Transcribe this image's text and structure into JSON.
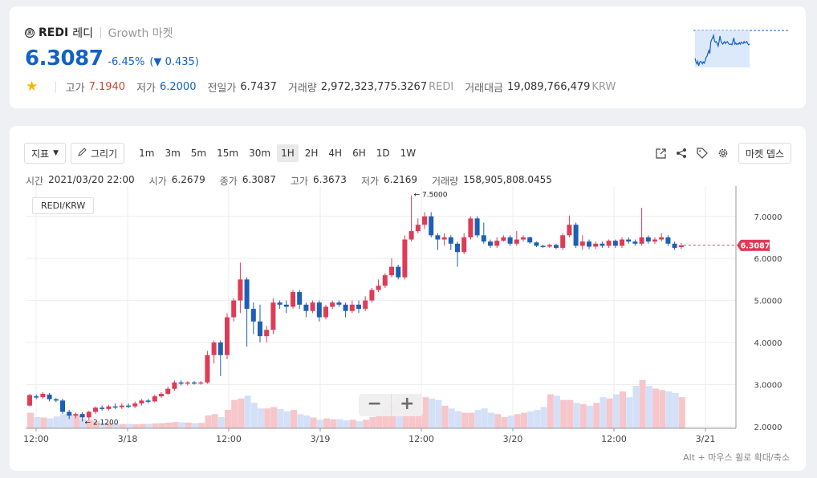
{
  "ticker": {
    "logo": "Ⓡ",
    "symbol": "REDI",
    "name": "레디",
    "separator": "|",
    "market": "Growth 마켓",
    "price": "6.3087",
    "change_pct": "-6.45%",
    "change_prefix": "(",
    "change_arrow": "▼",
    "change_abs": "0.435)",
    "stat_divider": "|",
    "high_label": "고가",
    "high": "7.1940",
    "low_label": "저가",
    "low": "6.2000",
    "prev_label": "전일가",
    "prev": "6.7437",
    "volume_label": "거래량",
    "volume": "2,972,323,775.3267",
    "volume_unit": "REDI",
    "amount_label": "거래대금",
    "amount": "19,089,766,479",
    "amount_unit": "KRW",
    "colors": {
      "up": "#c84a31",
      "down": "#1261c4",
      "star": "#f5b900"
    }
  },
  "toolbar": {
    "indicator_label": "지표",
    "draw_label": "그리기",
    "intervals": [
      "1m",
      "3m",
      "5m",
      "15m",
      "30m",
      "1H",
      "2H",
      "4H",
      "6H",
      "1D",
      "1W"
    ],
    "active_interval": "1H",
    "market_depth_label": "마켓 뎁스",
    "icons": [
      "popout-icon",
      "share-icon",
      "tag-icon",
      "settings-icon"
    ]
  },
  "ohlc": {
    "time_label": "시간",
    "time": "2021/03/20 22:00",
    "open_label": "시가",
    "open": "6.2679",
    "close_label": "종가",
    "close": "6.3087",
    "high_label": "고가",
    "high": "6.3673",
    "low_label": "저가",
    "low": "6.2169",
    "volume_label": "거래량",
    "volume": "158,905,808.0455"
  },
  "pair_label": "REDI/KRW",
  "zoom": {
    "minus": "−",
    "plus": "+"
  },
  "hint": "Alt + 마우스 휠로 확대/축소",
  "chart_data": {
    "type": "candlestick",
    "interval": "1H",
    "xlabel": "",
    "ylabel": "",
    "x_ticks": [
      "12:00",
      "3/18",
      "12:00",
      "3/19",
      "12:00",
      "3/20",
      "12:00",
      "3/21"
    ],
    "y_ticks": [
      "7.0000",
      "6.0000",
      "5.0000",
      "4.0000",
      "3.0000",
      "2.0000"
    ],
    "ylim": [
      1.96,
      7.72
    ],
    "current_price_label": "6.3087",
    "max_marker": "← 7.5000",
    "min_marker": "← 2.1200",
    "colors": {
      "up": "#dd3c57",
      "down": "#1d5fb4",
      "vol_up": "#f6c6cb",
      "vol_down": "#d4e0f7"
    },
    "candles": [
      [
        2.5,
        2.75,
        2.48,
        2.78
      ],
      [
        2.72,
        2.7,
        2.65,
        2.76
      ],
      [
        2.7,
        2.78,
        2.66,
        2.82
      ],
      [
        2.76,
        2.65,
        2.6,
        2.8
      ],
      [
        2.65,
        2.62,
        2.58,
        2.68
      ],
      [
        2.62,
        2.35,
        2.3,
        2.66
      ],
      [
        2.35,
        2.26,
        2.18,
        2.4
      ],
      [
        2.26,
        2.3,
        2.2,
        2.33
      ],
      [
        2.3,
        2.22,
        2.12,
        2.34
      ],
      [
        2.22,
        2.35,
        2.15,
        2.38
      ],
      [
        2.35,
        2.45,
        2.3,
        2.48
      ],
      [
        2.45,
        2.42,
        2.38,
        2.5
      ],
      [
        2.42,
        2.48,
        2.38,
        2.52
      ],
      [
        2.48,
        2.46,
        2.42,
        2.55
      ],
      [
        2.46,
        2.5,
        2.42,
        2.56
      ],
      [
        2.5,
        2.48,
        2.44,
        2.55
      ],
      [
        2.48,
        2.55,
        2.44,
        2.6
      ],
      [
        2.55,
        2.62,
        2.5,
        2.66
      ],
      [
        2.62,
        2.6,
        2.55,
        2.66
      ],
      [
        2.6,
        2.72,
        2.58,
        2.76
      ],
      [
        2.72,
        2.78,
        2.68,
        2.82
      ],
      [
        2.78,
        2.9,
        2.75,
        2.95
      ],
      [
        2.9,
        3.05,
        2.85,
        3.1
      ],
      [
        3.05,
        3.02,
        2.98,
        3.1
      ],
      [
        3.02,
        3.05,
        2.98,
        3.08
      ],
      [
        3.05,
        3.03,
        3.0,
        3.08
      ],
      [
        3.03,
        3.05,
        3.0,
        3.08
      ],
      [
        3.05,
        3.7,
        3.02,
        3.8
      ],
      [
        3.7,
        4.0,
        3.5,
        4.05
      ],
      [
        4.0,
        3.7,
        3.2,
        4.05
      ],
      [
        3.7,
        4.6,
        3.6,
        4.7
      ],
      [
        4.6,
        5.0,
        4.5,
        5.05
      ],
      [
        5.0,
        5.5,
        4.7,
        5.9
      ],
      [
        5.5,
        4.8,
        3.9,
        5.55
      ],
      [
        4.8,
        4.5,
        4.2,
        4.95
      ],
      [
        4.5,
        4.15,
        4.0,
        4.9
      ],
      [
        4.15,
        4.3,
        4.0,
        4.4
      ],
      [
        4.3,
        4.95,
        4.2,
        5.05
      ],
      [
        4.95,
        4.9,
        4.8,
        5.0
      ],
      [
        4.9,
        4.85,
        4.7,
        5.0
      ],
      [
        4.85,
        5.2,
        4.8,
        5.25
      ],
      [
        5.2,
        4.9,
        4.8,
        5.25
      ],
      [
        4.9,
        4.75,
        4.6,
        4.95
      ],
      [
        4.75,
        4.95,
        4.7,
        5.0
      ],
      [
        4.95,
        4.6,
        4.5,
        5.0
      ],
      [
        4.6,
        4.85,
        4.55,
        4.9
      ],
      [
        4.85,
        4.95,
        4.8,
        5.0
      ],
      [
        4.95,
        4.9,
        4.85,
        5.0
      ],
      [
        4.9,
        4.75,
        4.6,
        4.95
      ],
      [
        4.75,
        4.9,
        4.7,
        5.0
      ],
      [
        4.9,
        4.8,
        4.7,
        5.0
      ],
      [
        4.8,
        5.0,
        4.75,
        5.1
      ],
      [
        5.0,
        5.25,
        4.95,
        5.3
      ],
      [
        5.25,
        5.35,
        5.2,
        5.5
      ],
      [
        5.35,
        5.6,
        5.3,
        5.65
      ],
      [
        5.6,
        5.8,
        5.55,
        6.0
      ],
      [
        5.8,
        5.55,
        5.5,
        5.85
      ],
      [
        5.55,
        6.45,
        5.5,
        6.55
      ],
      [
        6.45,
        6.65,
        6.4,
        7.5
      ],
      [
        6.65,
        6.8,
        6.6,
        6.95
      ],
      [
        6.8,
        7.0,
        6.7,
        7.1
      ],
      [
        7.0,
        6.55,
        6.5,
        7.1
      ],
      [
        6.55,
        6.45,
        6.2,
        6.6
      ],
      [
        6.45,
        6.5,
        6.3,
        6.6
      ],
      [
        6.5,
        6.35,
        6.2,
        6.55
      ],
      [
        6.35,
        6.15,
        5.8,
        6.4
      ],
      [
        6.15,
        6.5,
        6.1,
        6.6
      ],
      [
        6.5,
        6.95,
        6.45,
        7.0
      ],
      [
        6.95,
        6.55,
        6.5,
        7.0
      ],
      [
        6.55,
        6.4,
        6.35,
        6.85
      ],
      [
        6.4,
        6.3,
        6.25,
        6.45
      ],
      [
        6.3,
        6.42,
        6.25,
        6.5
      ],
      [
        6.42,
        6.5,
        6.4,
        6.55
      ],
      [
        6.5,
        6.35,
        6.3,
        6.55
      ],
      [
        6.35,
        6.45,
        6.3,
        6.65
      ],
      [
        6.45,
        6.5,
        6.4,
        6.55
      ],
      [
        6.5,
        6.38,
        6.35,
        6.52
      ],
      [
        6.38,
        6.3,
        6.27,
        6.4
      ],
      [
        6.3,
        6.28,
        6.25,
        6.32
      ],
      [
        6.28,
        6.32,
        6.25,
        6.35
      ],
      [
        6.32,
        6.25,
        6.22,
        6.35
      ],
      [
        6.25,
        6.55,
        6.2,
        6.6
      ],
      [
        6.55,
        6.8,
        6.5,
        7.02
      ],
      [
        6.8,
        6.3,
        6.25,
        6.85
      ],
      [
        6.3,
        6.4,
        6.2,
        6.55
      ],
      [
        6.4,
        6.28,
        6.22,
        6.45
      ],
      [
        6.28,
        6.35,
        6.22,
        6.4
      ],
      [
        6.35,
        6.3,
        6.25,
        6.4
      ],
      [
        6.3,
        6.42,
        6.25,
        6.45
      ],
      [
        6.42,
        6.3,
        6.25,
        6.45
      ],
      [
        6.3,
        6.45,
        6.25,
        6.5
      ],
      [
        6.45,
        6.4,
        6.35,
        6.5
      ],
      [
        6.4,
        6.35,
        6.3,
        6.45
      ],
      [
        6.35,
        6.5,
        6.3,
        7.2
      ],
      [
        6.5,
        6.4,
        6.35,
        6.55
      ],
      [
        6.4,
        6.45,
        6.35,
        6.5
      ],
      [
        6.45,
        6.5,
        6.4,
        6.6
      ],
      [
        6.5,
        6.35,
        6.3,
        6.55
      ],
      [
        6.35,
        6.25,
        6.2,
        6.4
      ],
      [
        6.27,
        6.31,
        6.22,
        6.37
      ]
    ],
    "volumes": [
      0.55,
      0.4,
      0.38,
      0.35,
      0.42,
      0.5,
      0.48,
      0.45,
      0.35,
      0.3,
      0.25,
      0.2,
      0.18,
      0.17,
      0.15,
      0.15,
      0.14,
      0.15,
      0.16,
      0.17,
      0.18,
      0.2,
      0.22,
      0.21,
      0.2,
      0.18,
      0.19,
      0.45,
      0.5,
      0.4,
      0.65,
      1.0,
      1.05,
      1.15,
      0.9,
      0.7,
      0.7,
      0.75,
      0.68,
      0.6,
      0.65,
      0.5,
      0.45,
      0.38,
      0.3,
      0.35,
      0.32,
      0.32,
      0.28,
      0.3,
      0.25,
      0.3,
      0.4,
      0.45,
      0.7,
      0.9,
      1.1,
      1.1,
      1.2,
      1.15,
      1.1,
      1.05,
      1.0,
      0.8,
      0.7,
      0.6,
      0.55,
      0.55,
      0.65,
      0.7,
      0.55,
      0.5,
      0.4,
      0.45,
      0.5,
      0.55,
      0.6,
      0.65,
      0.75,
      1.2,
      1.15,
      1.0,
      1.0,
      0.9,
      0.85,
      0.8,
      0.9,
      1.1,
      1.05,
      1.2,
      1.3,
      1.1,
      1.5,
      1.7,
      1.5,
      1.4,
      1.35,
      1.3,
      1.25,
      1.1
    ]
  }
}
